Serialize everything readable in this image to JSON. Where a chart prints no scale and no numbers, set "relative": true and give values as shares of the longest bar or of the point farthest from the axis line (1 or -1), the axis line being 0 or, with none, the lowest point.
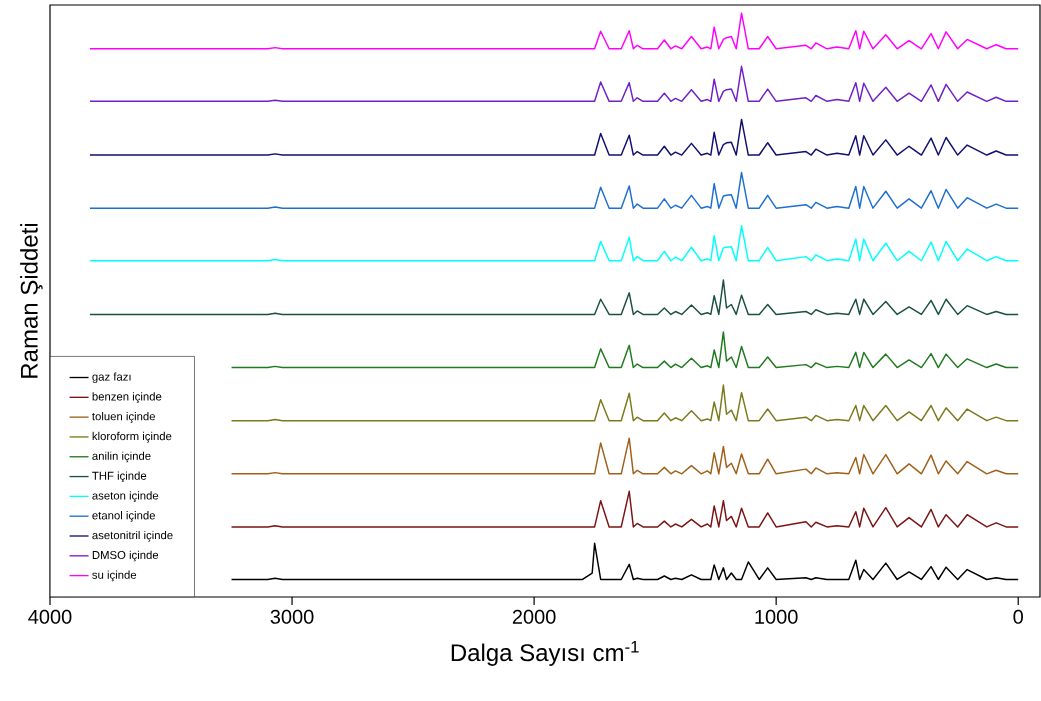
{
  "chart_data": {
    "type": "line",
    "relative": true,
    "xlabel": "Dalga Sayısı cm$^{-1}$",
    "ylabel": "Raman Şiddeti",
    "legend": "bottom left",
    "line_style": "solid",
    "xlim": [
      4000,
      -90
    ],
    "xticks": [
      4000,
      3000,
      2000,
      1000,
      0
    ],
    "x": [
      3835,
      3250,
      3100,
      3070,
      3040,
      1800,
      1760,
      1750,
      1725,
      1690,
      1640,
      1607,
      1590,
      1574,
      1550,
      1490,
      1462,
      1435,
      1416,
      1390,
      1350,
      1310,
      1284,
      1270,
      1256,
      1237,
      1218,
      1205,
      1185,
      1165,
      1143,
      1115,
      1070,
      1035,
      1000,
      877,
      855,
      836,
      790,
      749,
      700,
      671,
      655,
      638,
      600,
      547,
      500,
      451,
      400,
      360,
      330,
      298,
      250,
      211,
      130,
      91,
      50,
      0
    ],
    "series": [
      {
        "name": "gaz fazı",
        "color": "#000000",
        "values": [
          null,
          0.03,
          0.03,
          0.032,
          0.03,
          0.03,
          0.041,
          0.092,
          0.03,
          0.03,
          0.03,
          0.056,
          0.03,
          0.032,
          0.03,
          0.03,
          0.036,
          0.03,
          0.032,
          0.03,
          0.038,
          0.03,
          0.03,
          0.03,
          0.055,
          0.03,
          0.05,
          0.03,
          0.041,
          0.03,
          0.03,
          0.06,
          0.03,
          0.05,
          0.03,
          0.033,
          0.03,
          0.033,
          0.03,
          0.03,
          0.03,
          0.063,
          0.03,
          0.047,
          0.03,
          0.058,
          0.03,
          0.043,
          0.03,
          0.052,
          0.03,
          0.051,
          0.03,
          0.047,
          0.03,
          0.033,
          0.03,
          0.03
        ]
      },
      {
        "name": "benzen içinde",
        "color": "#7b1414",
        "values": [
          null,
          0.12,
          0.12,
          0.122,
          0.12,
          0.12,
          0.12,
          0.12,
          0.165,
          0.12,
          0.12,
          0.181,
          0.12,
          0.126,
          0.12,
          0.12,
          0.13,
          0.12,
          0.125,
          0.12,
          0.133,
          0.12,
          0.125,
          0.12,
          0.156,
          0.12,
          0.165,
          0.131,
          0.138,
          0.12,
          0.152,
          0.12,
          0.12,
          0.144,
          0.12,
          0.129,
          0.12,
          0.128,
          0.12,
          0.122,
          0.12,
          0.146,
          0.12,
          0.152,
          0.12,
          0.153,
          0.12,
          0.136,
          0.12,
          0.15,
          0.12,
          0.141,
          0.12,
          0.141,
          0.12,
          0.127,
          0.12,
          0.12
        ]
      },
      {
        "name": "toluen içinde",
        "color": "#a0601a",
        "values": [
          null,
          0.211,
          0.211,
          0.213,
          0.211,
          0.211,
          0.211,
          0.211,
          0.264,
          0.211,
          0.211,
          0.272,
          0.211,
          0.217,
          0.211,
          0.211,
          0.222,
          0.211,
          0.216,
          0.211,
          0.225,
          0.211,
          0.216,
          0.211,
          0.247,
          0.211,
          0.258,
          0.222,
          0.229,
          0.211,
          0.245,
          0.211,
          0.211,
          0.236,
          0.211,
          0.219,
          0.211,
          0.221,
          0.211,
          0.213,
          0.211,
          0.239,
          0.211,
          0.244,
          0.211,
          0.244,
          0.211,
          0.228,
          0.211,
          0.243,
          0.211,
          0.233,
          0.211,
          0.232,
          0.211,
          0.217,
          0.211,
          0.211
        ]
      },
      {
        "name": "kloroform içinde",
        "color": "#7a7a1a",
        "values": [
          null,
          0.302,
          0.302,
          0.304,
          0.302,
          0.302,
          0.302,
          0.302,
          0.338,
          0.302,
          0.302,
          0.349,
          0.302,
          0.308,
          0.302,
          0.302,
          0.315,
          0.302,
          0.307,
          0.302,
          0.319,
          0.302,
          0.305,
          0.302,
          0.334,
          0.302,
          0.363,
          0.313,
          0.32,
          0.302,
          0.35,
          0.302,
          0.302,
          0.322,
          0.302,
          0.308,
          0.302,
          0.311,
          0.302,
          0.304,
          0.302,
          0.328,
          0.302,
          0.328,
          0.302,
          0.328,
          0.302,
          0.317,
          0.302,
          0.328,
          0.302,
          0.324,
          0.302,
          0.322,
          0.302,
          0.308,
          0.302,
          0.302
        ]
      },
      {
        "name": "anilin içinde",
        "color": "#1f7a1f",
        "values": [
          null,
          0.393,
          0.393,
          0.395,
          0.393,
          0.393,
          0.393,
          0.393,
          0.425,
          0.393,
          0.393,
          0.431,
          0.393,
          0.399,
          0.393,
          0.393,
          0.404,
          0.393,
          0.399,
          0.393,
          0.409,
          0.393,
          0.396,
          0.393,
          0.423,
          0.393,
          0.454,
          0.404,
          0.411,
          0.393,
          0.429,
          0.393,
          0.393,
          0.411,
          0.393,
          0.398,
          0.393,
          0.401,
          0.393,
          0.395,
          0.393,
          0.419,
          0.393,
          0.419,
          0.393,
          0.416,
          0.393,
          0.406,
          0.393,
          0.417,
          0.393,
          0.416,
          0.393,
          0.408,
          0.393,
          0.399,
          0.393,
          0.393
        ]
      },
      {
        "name": "THF içinde",
        "color": "#1a5040",
        "values": [
          0.484,
          0.484,
          0.484,
          0.486,
          0.484,
          0.484,
          0.484,
          0.484,
          0.51,
          0.484,
          0.484,
          0.521,
          0.484,
          0.49,
          0.484,
          0.484,
          0.495,
          0.484,
          0.489,
          0.484,
          0.5,
          0.484,
          0.487,
          0.484,
          0.516,
          0.484,
          0.543,
          0.495,
          0.501,
          0.484,
          0.517,
          0.484,
          0.484,
          0.501,
          0.484,
          0.489,
          0.484,
          0.492,
          0.484,
          0.486,
          0.484,
          0.51,
          0.484,
          0.51,
          0.484,
          0.506,
          0.484,
          0.497,
          0.484,
          0.508,
          0.484,
          0.51,
          0.484,
          0.499,
          0.484,
          0.489,
          0.484,
          0.484
        ]
      },
      {
        "name": "aseton içinde",
        "color": "#00ffff",
        "values": [
          0.576,
          0.576,
          0.576,
          0.578,
          0.576,
          0.576,
          0.576,
          0.576,
          0.609,
          0.576,
          0.576,
          0.616,
          0.576,
          0.583,
          0.576,
          0.576,
          0.592,
          0.576,
          0.582,
          0.576,
          0.599,
          0.576,
          0.579,
          0.576,
          0.619,
          0.576,
          0.598,
          0.599,
          0.6,
          0.576,
          0.636,
          0.576,
          0.576,
          0.599,
          0.576,
          0.583,
          0.576,
          0.586,
          0.576,
          0.579,
          0.576,
          0.613,
          0.576,
          0.613,
          0.576,
          0.606,
          0.576,
          0.592,
          0.576,
          0.608,
          0.576,
          0.609,
          0.576,
          0.596,
          0.576,
          0.583,
          0.576,
          0.576
        ]
      },
      {
        "name": "etanol içinde",
        "color": "#1e6fd0",
        "values": [
          0.666,
          0.666,
          0.666,
          0.668,
          0.666,
          0.666,
          0.666,
          0.666,
          0.702,
          0.666,
          0.666,
          0.704,
          0.666,
          0.673,
          0.666,
          0.666,
          0.682,
          0.666,
          0.671,
          0.666,
          0.688,
          0.666,
          0.669,
          0.666,
          0.708,
          0.666,
          0.687,
          0.688,
          0.689,
          0.666,
          0.727,
          0.666,
          0.666,
          0.688,
          0.666,
          0.672,
          0.666,
          0.676,
          0.666,
          0.669,
          0.666,
          0.703,
          0.666,
          0.703,
          0.666,
          0.695,
          0.666,
          0.682,
          0.666,
          0.696,
          0.666,
          0.698,
          0.666,
          0.684,
          0.666,
          0.673,
          0.666,
          0.666
        ]
      },
      {
        "name": "asetonitril içinde",
        "color": "#101070",
        "values": [
          0.757,
          0.757,
          0.757,
          0.759,
          0.757,
          0.757,
          0.757,
          0.757,
          0.794,
          0.757,
          0.757,
          0.791,
          0.757,
          0.763,
          0.757,
          0.757,
          0.772,
          0.757,
          0.762,
          0.757,
          0.777,
          0.757,
          0.76,
          0.757,
          0.796,
          0.757,
          0.775,
          0.778,
          0.779,
          0.757,
          0.818,
          0.757,
          0.757,
          0.778,
          0.757,
          0.763,
          0.757,
          0.767,
          0.757,
          0.76,
          0.757,
          0.79,
          0.757,
          0.79,
          0.757,
          0.783,
          0.757,
          0.772,
          0.757,
          0.786,
          0.757,
          0.787,
          0.757,
          0.774,
          0.757,
          0.764,
          0.757,
          0.757
        ]
      },
      {
        "name": "DMSO içinde",
        "color": "#7020c8",
        "values": [
          0.849,
          0.849,
          0.849,
          0.851,
          0.849,
          0.849,
          0.849,
          0.849,
          0.882,
          0.849,
          0.849,
          0.881,
          0.849,
          0.855,
          0.849,
          0.849,
          0.863,
          0.849,
          0.854,
          0.849,
          0.869,
          0.849,
          0.852,
          0.849,
          0.887,
          0.849,
          0.866,
          0.869,
          0.87,
          0.849,
          0.909,
          0.849,
          0.849,
          0.87,
          0.849,
          0.855,
          0.849,
          0.859,
          0.849,
          0.852,
          0.849,
          0.881,
          0.849,
          0.88,
          0.849,
          0.873,
          0.849,
          0.863,
          0.849,
          0.877,
          0.849,
          0.878,
          0.849,
          0.865,
          0.849,
          0.856,
          0.849,
          0.849
        ]
      },
      {
        "name": "su içinde",
        "color": "#ff00ff",
        "values": [
          0.939,
          0.939,
          0.939,
          0.941,
          0.939,
          0.939,
          0.939,
          0.939,
          0.969,
          0.939,
          0.939,
          0.97,
          0.939,
          0.945,
          0.939,
          0.939,
          0.954,
          0.939,
          0.944,
          0.939,
          0.96,
          0.939,
          0.942,
          0.939,
          0.976,
          0.939,
          0.955,
          0.958,
          0.96,
          0.939,
          1.0,
          0.939,
          0.939,
          0.96,
          0.939,
          0.945,
          0.939,
          0.949,
          0.939,
          0.942,
          0.939,
          0.97,
          0.939,
          0.969,
          0.939,
          0.963,
          0.939,
          0.953,
          0.939,
          0.965,
          0.939,
          0.968,
          0.939,
          0.955,
          0.939,
          0.946,
          0.939,
          0.939
        ]
      }
    ]
  }
}
